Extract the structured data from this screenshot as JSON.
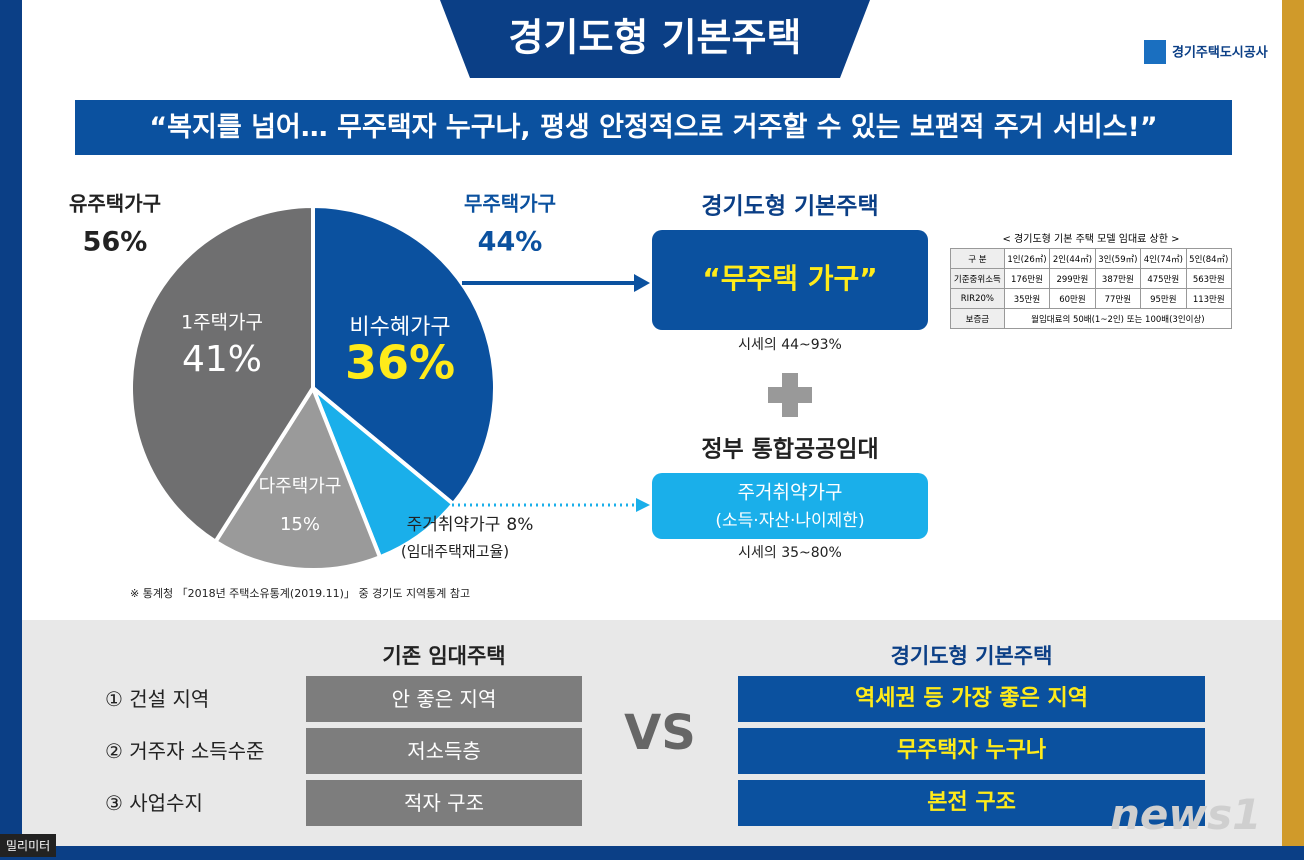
{
  "header": {
    "title": "경기도형  기본주택",
    "logo": "경기주택도시공사",
    "slogan": "“복지를 넘어… 무주택자 누구나, 평생 안정적으로 거주할 수 있는 보편적 주거 서비스!”"
  },
  "chart_data": {
    "type": "pie",
    "categories": [
      "비수혜가구",
      "주거취약가구",
      "다주택가구",
      "1주택가구"
    ],
    "values": [
      36,
      8,
      15,
      41
    ],
    "value_labels": [
      "36%",
      "8%",
      "15%",
      "41%"
    ],
    "colors": [
      "#0b519f",
      "#1aafea",
      "#9a9a9a",
      "#6f6f70"
    ],
    "groups": [
      {
        "name": "유주택가구",
        "label": "56%"
      },
      {
        "name": "무주택가구",
        "label": "44%"
      }
    ],
    "annotations": [
      "(임대주택재고율)"
    ],
    "source": "※ 통계청 「2018년 주택소유통계(2019.11)」 중  경기도  지역통계 참고"
  },
  "boxes": [
    {
      "title": "경기도형 기본주택",
      "lines": [
        "“무주택 가구”"
      ],
      "note": "시세의 44~93%"
    },
    {
      "title": "정부 통합공공임대",
      "lines": [
        "주거취약가구",
        "(소득·자산·나이제한)"
      ],
      "note": "시세의 35~80%"
    }
  ],
  "table": {
    "title": "< 경기도형 기본 주택 모델 임대료 상한 >",
    "header": [
      "구 분",
      "1인(26㎡)",
      "2인(44㎡)",
      "3인(59㎡)",
      "4인(74㎡)",
      "5인(84㎡)"
    ],
    "rows": [
      [
        "기준중위소득",
        "176만원",
        "299만원",
        "387만원",
        "475만원",
        "563만원"
      ],
      [
        "RIR20%",
        "35만원",
        "60만원",
        "77만원",
        "95만원",
        "113만원"
      ],
      [
        "보증금",
        "월임대료의 50배(1~2인) 또는 100배(3인이상)"
      ]
    ]
  },
  "compare": {
    "left_title": "기존 임대주택",
    "right_title": "경기도형 기본주택",
    "vs": "VS",
    "rows": [
      {
        "item": "① 건설 지역",
        "old": "안 좋은 지역",
        "new": "역세권 등 가장 좋은 지역"
      },
      {
        "item": "② 거주자 소득수준",
        "old": "저소득층",
        "new": "무주택자 누구나"
      },
      {
        "item": "③ 사업수지",
        "old": "적자 구조",
        "new": "본전 구조"
      }
    ]
  },
  "watermark": {
    "brand": "news1",
    "corner": "밀리미터"
  }
}
